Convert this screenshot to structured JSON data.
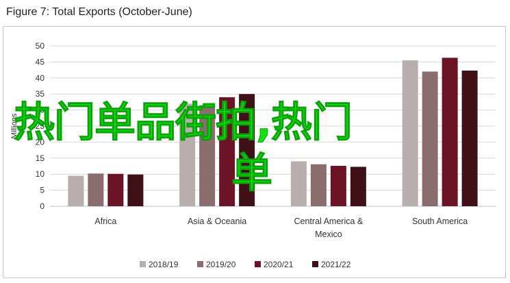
{
  "title": "Figure 7: Total Exports (October-June)",
  "overlay": {
    "line1": "热门单品街拍,热门",
    "line2": "单"
  },
  "chart_data": {
    "type": "bar",
    "title": "Figure 7: Total Exports (October-June)",
    "ylabel": "Millions",
    "xlabel": "",
    "ylim": [
      0,
      50
    ],
    "yticks": [
      0,
      5,
      10,
      15,
      20,
      25,
      30,
      35,
      40,
      45,
      50
    ],
    "grid": true,
    "legend_position": "bottom",
    "categories": [
      "Africa",
      "Asia & Oceania",
      "Central America & Mexico",
      "South America"
    ],
    "category_lines": [
      [
        "Africa"
      ],
      [
        "Asia & Oceania"
      ],
      [
        "Central America &",
        "Mexico"
      ],
      [
        "South America"
      ]
    ],
    "series": [
      {
        "name": "2018/19",
        "color": "#b9adad",
        "values": [
          9.5,
          32,
          14,
          45.5
        ]
      },
      {
        "name": "2019/20",
        "color": "#8c6d6d",
        "values": [
          10.2,
          31.5,
          13.1,
          42
        ]
      },
      {
        "name": "2020/21",
        "color": "#6b1426",
        "values": [
          10.1,
          34,
          12.6,
          46.3
        ]
      },
      {
        "name": "2021/22",
        "color": "#3e1116",
        "values": [
          9.9,
          35,
          12.3,
          42.3
        ]
      }
    ]
  }
}
